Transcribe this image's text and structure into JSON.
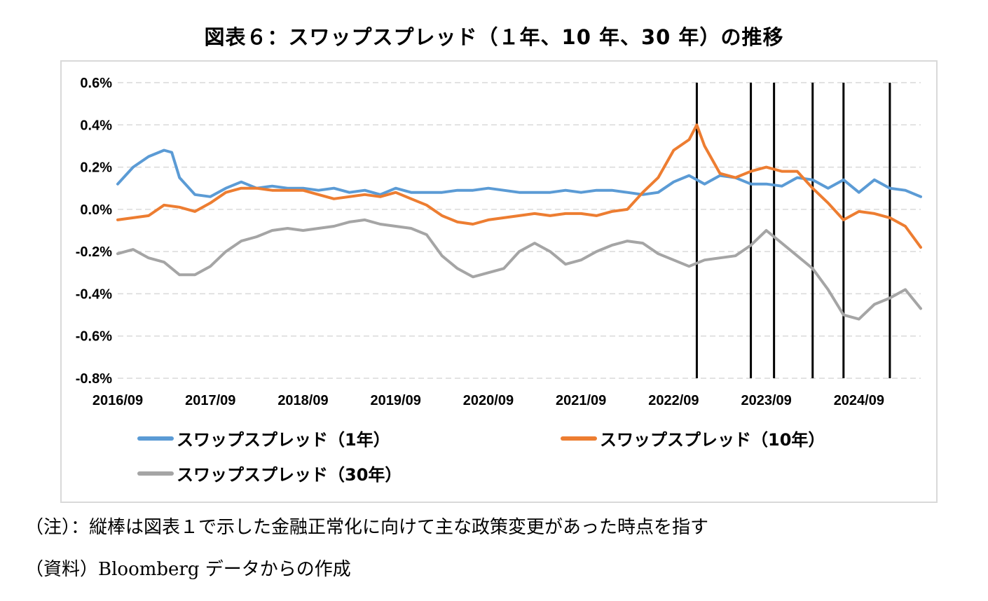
{
  "title": "図表６：スワップスプレッド（１年、10 年、30 年）の推移",
  "notes": {
    "note": "（注）：縦棒は図表１で示した金融正常化に向けて主な政策変更があった時点を指す",
    "source": "（資料）Bloomberg データからの作成"
  },
  "colors": {
    "series_1y": "#5b9bd5",
    "series_10y": "#ed7d31",
    "series_30y": "#a5a5a5",
    "vline": "#000000",
    "grid": "#d9d9d9"
  },
  "chart_data": {
    "type": "line",
    "title": "図表６：スワップスプレッド（１年、10 年、30 年）の推移",
    "xlabel": "",
    "ylabel": "",
    "ylim": [
      -0.8,
      0.6
    ],
    "y_ticks": [
      0.6,
      0.4,
      0.2,
      0.0,
      -0.2,
      -0.4,
      -0.6,
      -0.8
    ],
    "y_tick_labels": [
      "0.6%",
      "0.4%",
      "0.2%",
      "0.0%",
      "-0.2%",
      "-0.4%",
      "-0.6%",
      "-0.8%"
    ],
    "x_tick_labels": [
      "2016/09",
      "2017/09",
      "2018/09",
      "2019/09",
      "2020/09",
      "2021/09",
      "2022/09",
      "2023/09",
      "2024/09"
    ],
    "x_range": [
      "2016-09",
      "2025-05"
    ],
    "grid": "horizontal dashed",
    "legend_position": "bottom",
    "vertical_lines": [
      "2022-12",
      "2023-07",
      "2023-10",
      "2024-03",
      "2024-07",
      "2025-01"
    ],
    "series": [
      {
        "name": "スワップスプレッド（1年）",
        "x": [
          "2016-09",
          "2016-11",
          "2017-01",
          "2017-03",
          "2017-04",
          "2017-05",
          "2017-07",
          "2017-09",
          "2017-11",
          "2018-01",
          "2018-03",
          "2018-05",
          "2018-07",
          "2018-09",
          "2018-11",
          "2019-01",
          "2019-03",
          "2019-05",
          "2019-07",
          "2019-09",
          "2019-11",
          "2020-01",
          "2020-03",
          "2020-05",
          "2020-07",
          "2020-09",
          "2020-11",
          "2021-01",
          "2021-03",
          "2021-05",
          "2021-07",
          "2021-09",
          "2021-11",
          "2022-01",
          "2022-03",
          "2022-05",
          "2022-07",
          "2022-09",
          "2022-11",
          "2023-01",
          "2023-03",
          "2023-05",
          "2023-07",
          "2023-09",
          "2023-11",
          "2024-01",
          "2024-03",
          "2024-05",
          "2024-07",
          "2024-09",
          "2024-11",
          "2025-01",
          "2025-03",
          "2025-05"
        ],
        "values": [
          0.12,
          0.2,
          0.25,
          0.28,
          0.27,
          0.15,
          0.07,
          0.06,
          0.1,
          0.13,
          0.1,
          0.11,
          0.1,
          0.1,
          0.09,
          0.1,
          0.08,
          0.09,
          0.07,
          0.1,
          0.08,
          0.08,
          0.08,
          0.09,
          0.09,
          0.1,
          0.09,
          0.08,
          0.08,
          0.08,
          0.09,
          0.08,
          0.09,
          0.09,
          0.08,
          0.07,
          0.08,
          0.13,
          0.16,
          0.12,
          0.16,
          0.15,
          0.12,
          0.12,
          0.11,
          0.15,
          0.14,
          0.1,
          0.14,
          0.08,
          0.14,
          0.1,
          0.09,
          0.06
        ]
      },
      {
        "name": "スワップスプレッド（10年）",
        "x": [
          "2016-09",
          "2016-11",
          "2017-01",
          "2017-03",
          "2017-05",
          "2017-07",
          "2017-09",
          "2017-11",
          "2018-01",
          "2018-03",
          "2018-05",
          "2018-07",
          "2018-09",
          "2018-11",
          "2019-01",
          "2019-03",
          "2019-05",
          "2019-07",
          "2019-09",
          "2019-11",
          "2020-01",
          "2020-03",
          "2020-05",
          "2020-07",
          "2020-09",
          "2020-11",
          "2021-01",
          "2021-03",
          "2021-05",
          "2021-07",
          "2021-09",
          "2021-11",
          "2022-01",
          "2022-03",
          "2022-05",
          "2022-07",
          "2022-09",
          "2022-11",
          "2022-12",
          "2023-01",
          "2023-03",
          "2023-05",
          "2023-07",
          "2023-09",
          "2023-11",
          "2024-01",
          "2024-03",
          "2024-05",
          "2024-07",
          "2024-09",
          "2024-11",
          "2025-01",
          "2025-03",
          "2025-05"
        ],
        "values": [
          -0.05,
          -0.04,
          -0.03,
          0.02,
          0.01,
          -0.01,
          0.03,
          0.08,
          0.1,
          0.1,
          0.09,
          0.09,
          0.09,
          0.07,
          0.05,
          0.06,
          0.07,
          0.06,
          0.08,
          0.05,
          0.02,
          -0.03,
          -0.06,
          -0.07,
          -0.05,
          -0.04,
          -0.03,
          -0.02,
          -0.03,
          -0.02,
          -0.02,
          -0.03,
          -0.01,
          0.0,
          0.08,
          0.15,
          0.28,
          0.33,
          0.4,
          0.3,
          0.17,
          0.15,
          0.18,
          0.2,
          0.18,
          0.18,
          0.1,
          0.03,
          -0.05,
          -0.01,
          -0.02,
          -0.04,
          -0.08,
          -0.18
        ]
      },
      {
        "name": "スワップスプレッド（30年）",
        "x": [
          "2016-09",
          "2016-11",
          "2017-01",
          "2017-03",
          "2017-05",
          "2017-07",
          "2017-09",
          "2017-11",
          "2018-01",
          "2018-03",
          "2018-05",
          "2018-07",
          "2018-09",
          "2018-11",
          "2019-01",
          "2019-03",
          "2019-05",
          "2019-07",
          "2019-09",
          "2019-11",
          "2020-01",
          "2020-03",
          "2020-05",
          "2020-07",
          "2020-09",
          "2020-11",
          "2021-01",
          "2021-03",
          "2021-05",
          "2021-07",
          "2021-09",
          "2021-11",
          "2022-01",
          "2022-03",
          "2022-05",
          "2022-07",
          "2022-09",
          "2022-11",
          "2023-01",
          "2023-03",
          "2023-05",
          "2023-07",
          "2023-09",
          "2023-11",
          "2024-01",
          "2024-03",
          "2024-05",
          "2024-07",
          "2024-09",
          "2024-11",
          "2025-01",
          "2025-03",
          "2025-05"
        ],
        "values": [
          -0.21,
          -0.19,
          -0.23,
          -0.25,
          -0.31,
          -0.31,
          -0.27,
          -0.2,
          -0.15,
          -0.13,
          -0.1,
          -0.09,
          -0.1,
          -0.09,
          -0.08,
          -0.06,
          -0.05,
          -0.07,
          -0.08,
          -0.09,
          -0.12,
          -0.22,
          -0.28,
          -0.32,
          -0.3,
          -0.28,
          -0.2,
          -0.16,
          -0.2,
          -0.26,
          -0.24,
          -0.2,
          -0.17,
          -0.15,
          -0.16,
          -0.21,
          -0.24,
          -0.27,
          -0.24,
          -0.23,
          -0.22,
          -0.17,
          -0.1,
          -0.16,
          -0.22,
          -0.28,
          -0.38,
          -0.5,
          -0.52,
          -0.45,
          -0.42,
          -0.38,
          -0.47
        ]
      }
    ]
  }
}
